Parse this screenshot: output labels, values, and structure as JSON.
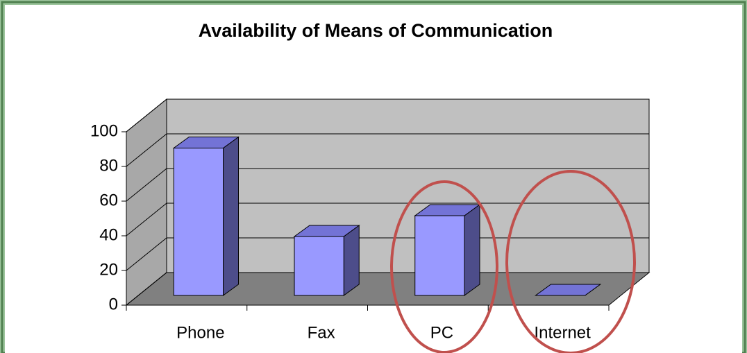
{
  "chart_data": {
    "type": "bar3d",
    "title": "Availability of Means of Communication",
    "categories": [
      "Phone",
      "Fax",
      "PC",
      "Internet"
    ],
    "values": [
      85,
      34,
      46,
      0
    ],
    "color": "#9999ff",
    "ylim": [
      0,
      100
    ],
    "yticks": [
      0,
      20,
      40,
      60,
      80,
      100
    ],
    "grid": true
  }
}
